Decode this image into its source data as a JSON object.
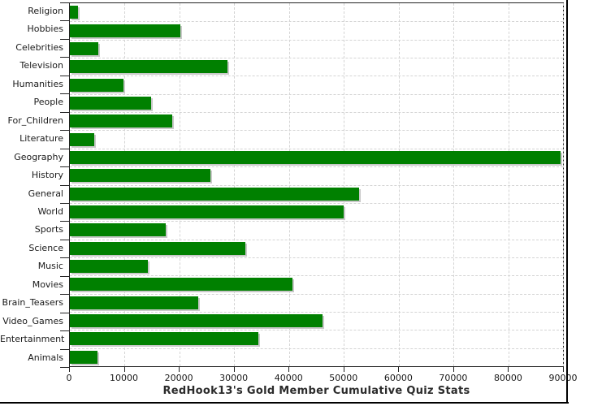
{
  "chart_data": {
    "type": "bar",
    "orientation": "horizontal",
    "title": "RedHook13's Gold Member Cumulative Quiz Stats",
    "categories": [
      "Religion",
      "Hobbies",
      "Celebrities",
      "Television",
      "Humanities",
      "People",
      "For_Children",
      "Literature",
      "Geography",
      "History",
      "General",
      "World",
      "Sports",
      "Science",
      "Music",
      "Movies",
      "Brain_Teasers",
      "Video_Games",
      "Entertainment",
      "Animals"
    ],
    "values": [
      1500,
      20100,
      5200,
      28800,
      9800,
      14900,
      18700,
      4400,
      89500,
      25600,
      52800,
      49900,
      17500,
      32100,
      14300,
      40600,
      23400,
      46100,
      34400,
      5000
    ],
    "xlim": [
      0,
      90000
    ],
    "x_ticks": [
      0,
      10000,
      20000,
      30000,
      40000,
      50000,
      60000,
      70000,
      80000,
      90000
    ],
    "xlabel": "",
    "ylabel": "",
    "grid": "dashed",
    "legend_position": "none",
    "colors": {
      "bar": "#008000",
      "bar_shadow": "#c9c9c9",
      "grid": "#d4d4d4",
      "axis": "#222222",
      "text": "#1a1a1a",
      "frame": "#000000"
    }
  }
}
